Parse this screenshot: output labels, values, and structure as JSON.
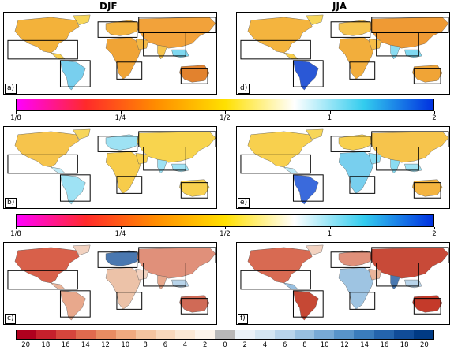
{
  "columns": {
    "left": "DJF",
    "right": "JJA"
  },
  "panel_labels": [
    "a)",
    "b)",
    "c)",
    "d)",
    "e)",
    "f)"
  ],
  "colorbar_ratio": {
    "ticks": [
      "1/8",
      "1/4",
      "1/2",
      "1",
      "2"
    ],
    "stops": [
      "#ff00ff",
      "#ff2a2a",
      "#ff8c00",
      "#ffe000",
      "#ffffff",
      "#33ccee",
      "#0030e0"
    ]
  },
  "colorbar_percent": {
    "ticks": [
      "20",
      "18",
      "16",
      "14",
      "12",
      "10",
      "8",
      "6",
      "4",
      "2",
      "0",
      "2",
      "4",
      "6",
      "8",
      "10",
      "12",
      "14",
      "16",
      "18",
      "20"
    ],
    "colors": [
      "#b0001e",
      "#c6202c",
      "#d6453c",
      "#e06a4e",
      "#e88c62",
      "#f0aa80",
      "#f4c4a0",
      "#f8d8bc",
      "#fbe8d4",
      "#fdf4ea",
      "#b8b8b8",
      "#eaf2f8",
      "#d4e6f2",
      "#b8d4ea",
      "#98c0e0",
      "#78aad6",
      "#5894ca",
      "#3a7cbc",
      "#2464ac",
      "#104c98",
      "#003a84"
    ]
  },
  "colors": {
    "land_warm": "#f0a030",
    "land_yellow": "#f8d84a",
    "land_cyan": "#7fd8f0",
    "land_blue": "#2c5fd8",
    "diff_red": "#c43a2a",
    "diff_blue": "#2f5f9c"
  }
}
